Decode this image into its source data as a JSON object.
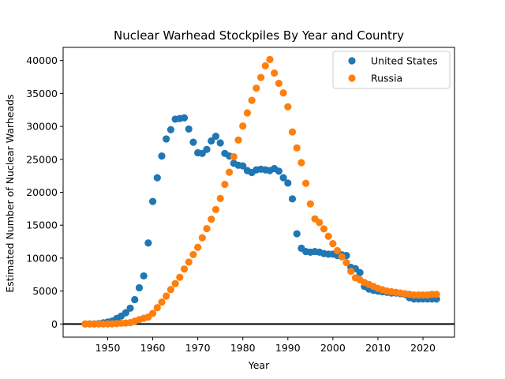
{
  "chart_data": {
    "type": "scatter",
    "title": "Nuclear Warhead Stockpiles By Year and Country",
    "xlabel": "Year",
    "ylabel": "Estimated Number of Nuclear Warheads",
    "xlim": [
      1940.1,
      2027
    ],
    "ylim": [
      -2000,
      42000
    ],
    "xticks": [
      1950,
      1960,
      1970,
      1980,
      1990,
      2000,
      2010,
      2020
    ],
    "yticks": [
      0,
      5000,
      10000,
      15000,
      20000,
      25000,
      30000,
      35000,
      40000
    ],
    "reference_line": {
      "y": 0,
      "color": "#000000"
    },
    "legend_position": "top-right",
    "grid": false,
    "series": [
      {
        "name": "United States",
        "color": "#1f77b4",
        "x": [
          1945,
          1946,
          1947,
          1948,
          1949,
          1950,
          1951,
          1952,
          1953,
          1954,
          1955,
          1956,
          1957,
          1958,
          1959,
          1960,
          1961,
          1962,
          1963,
          1964,
          1965,
          1966,
          1967,
          1968,
          1969,
          1970,
          1971,
          1972,
          1973,
          1974,
          1975,
          1976,
          1977,
          1978,
          1979,
          1980,
          1981,
          1982,
          1983,
          1984,
          1985,
          1986,
          1987,
          1988,
          1989,
          1990,
          1991,
          1992,
          1993,
          1994,
          1995,
          1996,
          1997,
          1998,
          1999,
          2000,
          2001,
          2002,
          2003,
          2004,
          2005,
          2006,
          2007,
          2008,
          2009,
          2010,
          2011,
          2012,
          2013,
          2014,
          2015,
          2016,
          2017,
          2018,
          2019,
          2020,
          2021,
          2022,
          2023
        ],
        "y": [
          2,
          9,
          13,
          50,
          170,
          300,
          440,
          840,
          1200,
          1700,
          2400,
          3700,
          5500,
          7300,
          12300,
          18600,
          22200,
          25500,
          28100,
          29500,
          31100,
          31200,
          31300,
          29600,
          27600,
          26000,
          25900,
          26500,
          27800,
          28500,
          27500,
          25900,
          25500,
          24400,
          24100,
          24000,
          23300,
          23000,
          23400,
          23500,
          23400,
          23300,
          23600,
          23200,
          22200,
          21400,
          19000,
          13700,
          11500,
          11000,
          10900,
          11000,
          10900,
          10700,
          10600,
          10600,
          10400,
          10500,
          10400,
          8600,
          8400,
          7800,
          5700,
          5300,
          5100,
          5000,
          4900,
          4800,
          4700,
          4700,
          4600,
          4500,
          4000,
          3800,
          3800,
          3800,
          3800,
          3800,
          3800
        ]
      },
      {
        "name": "Russia",
        "color": "#ff7f0e",
        "x": [
          1945,
          1946,
          1947,
          1948,
          1949,
          1950,
          1951,
          1952,
          1953,
          1954,
          1955,
          1956,
          1957,
          1958,
          1959,
          1960,
          1961,
          1962,
          1963,
          1964,
          1965,
          1966,
          1967,
          1968,
          1969,
          1970,
          1971,
          1972,
          1973,
          1974,
          1975,
          1976,
          1977,
          1978,
          1979,
          1980,
          1981,
          1982,
          1983,
          1984,
          1985,
          1986,
          1987,
          1988,
          1989,
          1990,
          1991,
          1992,
          1993,
          1994,
          1995,
          1996,
          1997,
          1998,
          1999,
          2000,
          2001,
          2002,
          2003,
          2004,
          2005,
          2006,
          2007,
          2008,
          2009,
          2010,
          2011,
          2012,
          2013,
          2014,
          2015,
          2016,
          2017,
          2018,
          2019,
          2020,
          2021,
          2022,
          2023
        ],
        "y": [
          0,
          0,
          0,
          0,
          1,
          5,
          25,
          50,
          120,
          150,
          200,
          426,
          660,
          869,
          1060,
          1605,
          2471,
          3322,
          4238,
          5221,
          6129,
          7089,
          8339,
          9399,
          10538,
          11643,
          13092,
          14478,
          15915,
          17385,
          19055,
          21205,
          23044,
          25393,
          27935,
          30062,
          32049,
          33952,
          35804,
          37431,
          39197,
          40159,
          38107,
          36538,
          35078,
          32980,
          29154,
          26734,
          24493,
          21358,
          18235,
          15963,
          15412,
          14443,
          13318,
          12188,
          11130,
          10186,
          9320,
          8000,
          7000,
          6700,
          6300,
          6000,
          5700,
          5400,
          5200,
          5000,
          4900,
          4800,
          4700,
          4600,
          4500,
          4400,
          4400,
          4400,
          4400,
          4500,
          4500
        ]
      }
    ]
  }
}
